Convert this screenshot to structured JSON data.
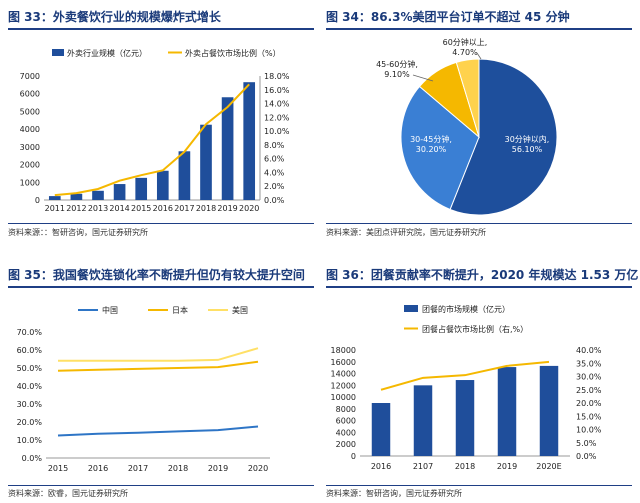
{
  "panels": [
    {
      "title": "图 33：外卖餐饮行业的规模爆炸式增长",
      "source": "资料来源：：智研咨询，国元证券研究所"
    },
    {
      "title": "图 34：86.3%美团平台订单不超过 45 分钟",
      "source": "资料来源：美团点评研究院，国元证券研究所"
    },
    {
      "title": "图 35：我国餐饮连锁化率不断提升但仍有较大提升空间",
      "source": "资料来源：欧睿，国元证券研究所"
    },
    {
      "title": "图 36：团餐贡献率不断提升，2020 年规模达 1.53 万亿",
      "source": "资料来源：智研咨询，国元证券研究所"
    }
  ],
  "colors": {
    "bar": "#1f4e9b",
    "line": "#f5b800",
    "china": "#2e75c6",
    "japan": "#f5b800",
    "usa": "#ffe066",
    "pie": [
      "#1e4f9c",
      "#3a7fd4",
      "#f5b800",
      "#ffd24d"
    ]
  },
  "chart_data": [
    {
      "type": "bar",
      "categories": [
        "2011",
        "2012",
        "2013",
        "2014",
        "2015",
        "2016",
        "2017",
        "2018",
        "2019",
        "2020"
      ],
      "series": [
        {
          "name": "外卖行业规模（亿元）",
          "axis": "left",
          "type": "bar",
          "values": [
            220,
            350,
            520,
            900,
            1250,
            1650,
            2750,
            4250,
            5800,
            6650
          ]
        },
        {
          "name": "外卖占餐饮市场比例（%）",
          "axis": "right",
          "type": "line",
          "values": [
            0.7,
            1.0,
            1.6,
            2.8,
            3.6,
            4.3,
            7.0,
            11.0,
            13.5,
            16.8
          ]
        }
      ],
      "y_left": {
        "min": 0,
        "max": 7000,
        "ticks": [
          "0",
          "1000",
          "2000",
          "3000",
          "4000",
          "5000",
          "6000",
          "7000"
        ]
      },
      "y_right": {
        "min": 0,
        "max": 18,
        "ticks": [
          "0.0%",
          "2.0%",
          "4.0%",
          "6.0%",
          "8.0%",
          "10.0%",
          "12.0%",
          "14.0%",
          "16.0%",
          "18.0%"
        ]
      }
    },
    {
      "type": "pie",
      "slices": [
        {
          "label": "30分钟以内,",
          "pct": "56.10%",
          "value": 56.1
        },
        {
          "label": "30-45分钟,",
          "pct": "30.20%",
          "value": 30.2
        },
        {
          "label": "45-60分钟,",
          "pct": "9.10%",
          "value": 9.1
        },
        {
          "label": "60分钟以上,",
          "pct": "4.70%",
          "value": 4.7
        }
      ]
    },
    {
      "type": "line",
      "categories": [
        "2015",
        "2016",
        "2017",
        "2018",
        "2019",
        "2020"
      ],
      "series": [
        {
          "name": "中国",
          "values": [
            12.5,
            13.5,
            14.0,
            14.8,
            15.5,
            17.5
          ]
        },
        {
          "name": "日本",
          "values": [
            48.5,
            49.0,
            49.5,
            50.0,
            50.5,
            53.5
          ]
        },
        {
          "name": "美国",
          "values": [
            54.0,
            54.0,
            54.0,
            54.0,
            54.5,
            61.0
          ]
        }
      ],
      "y": {
        "min": 0,
        "max": 70,
        "ticks": [
          "0.0%",
          "10.0%",
          "20.0%",
          "30.0%",
          "40.0%",
          "50.0%",
          "60.0%",
          "70.0%"
        ]
      }
    },
    {
      "type": "bar",
      "categories": [
        "2016",
        "2107",
        "2018",
        "2019",
        "2020E"
      ],
      "series": [
        {
          "name": "团餐的市场规模（亿元）",
          "axis": "left",
          "type": "bar",
          "values": [
            9000,
            12000,
            12900,
            15100,
            15300
          ]
        },
        {
          "name": "团餐占餐饮市场比例（右,%）",
          "axis": "right",
          "type": "line",
          "values": [
            25.0,
            29.5,
            30.5,
            34.0,
            35.5
          ]
        }
      ],
      "y_left": {
        "min": 0,
        "max": 18000,
        "ticks": [
          "0",
          "2000",
          "4000",
          "6000",
          "8000",
          "10000",
          "12000",
          "14000",
          "16000",
          "18000"
        ]
      },
      "y_right": {
        "min": 0,
        "max": 40,
        "ticks": [
          "0.0%",
          "5.0%",
          "10.0%",
          "15.0%",
          "20.0%",
          "25.0%",
          "30.0%",
          "35.0%",
          "40.0%"
        ]
      }
    }
  ]
}
